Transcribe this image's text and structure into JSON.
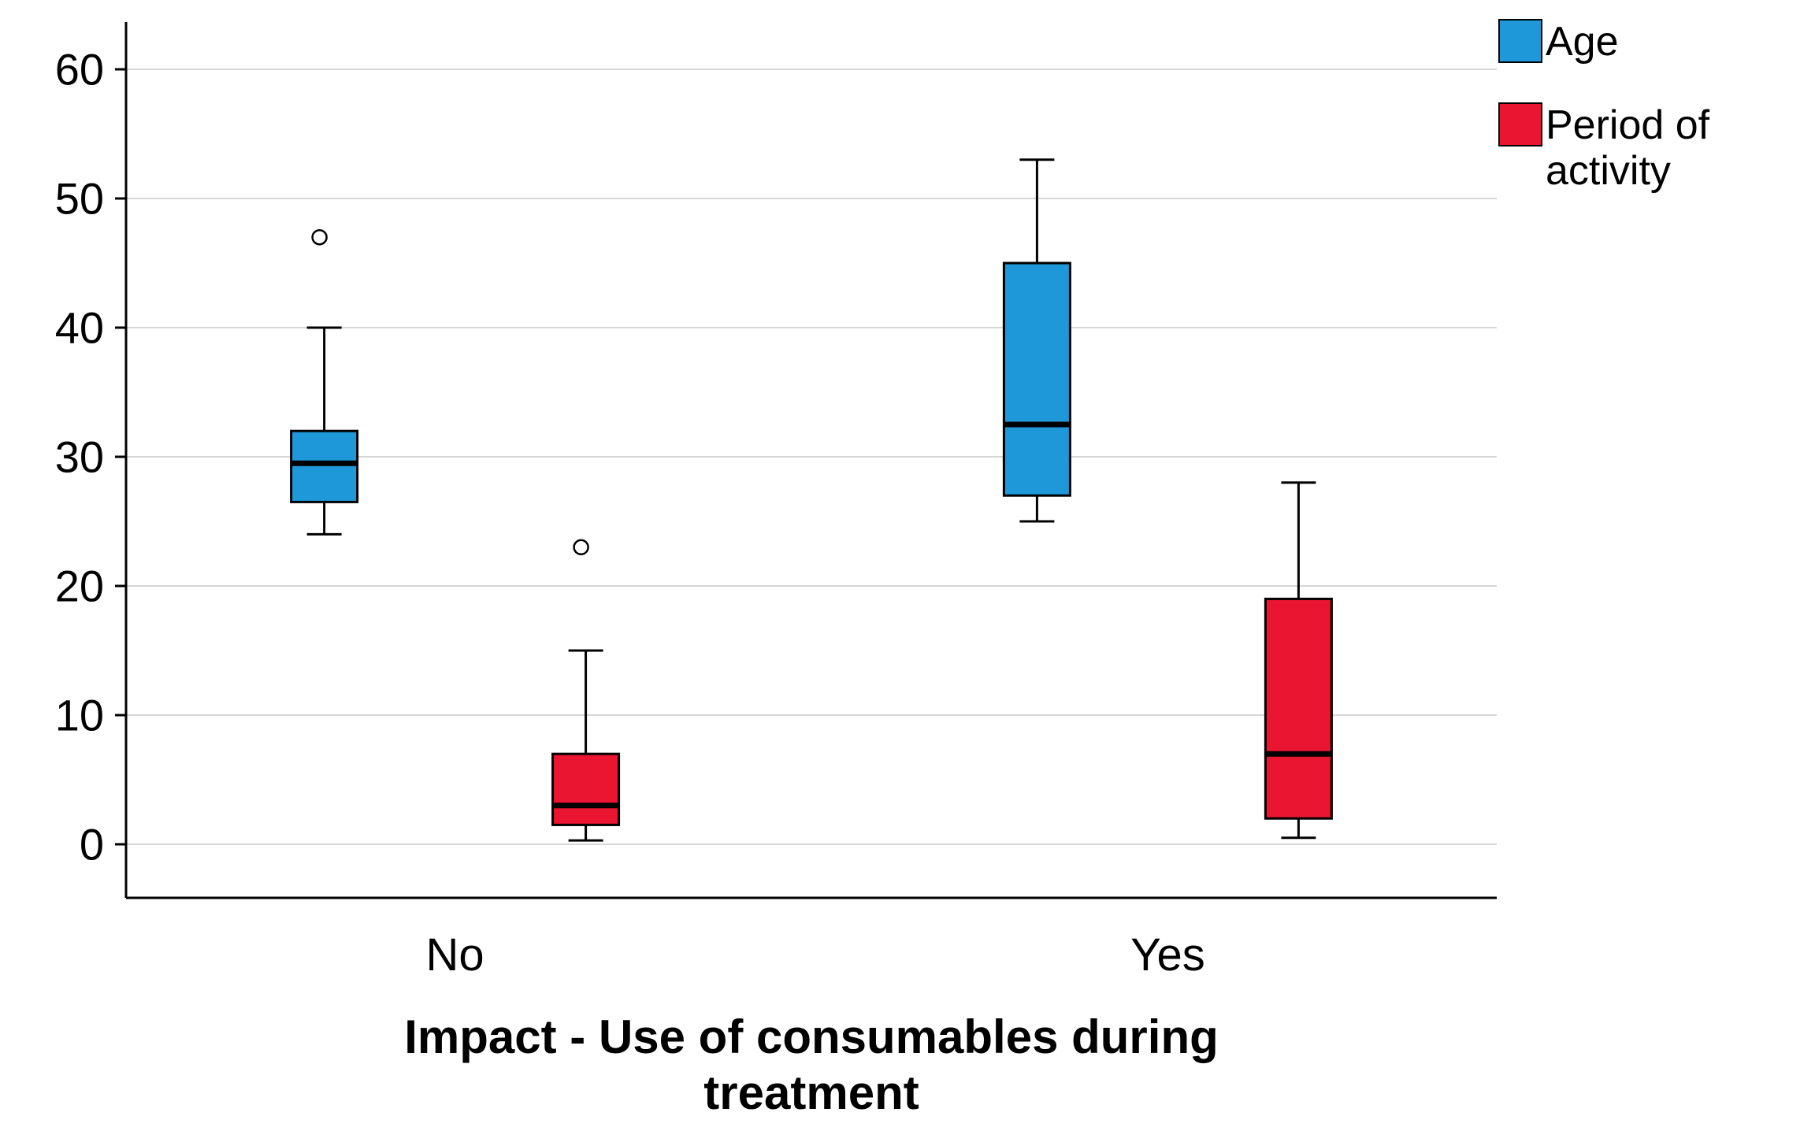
{
  "figure": {
    "background": "#ffffff"
  },
  "chart_data": {
    "type": "boxplot",
    "title": "",
    "xlabel": "Impact - Use of consumables during treatment",
    "ylabel": "",
    "ylim": [
      0,
      60
    ],
    "yticks": [
      0,
      10,
      20,
      30,
      40,
      50,
      60
    ],
    "grid": "horizontal",
    "categories": [
      "No",
      "Yes"
    ],
    "series": [
      {
        "name": "Age",
        "color": "#1e98d8",
        "boxes": [
          {
            "category": "No",
            "whisker_low": 24,
            "q1": 26.5,
            "median": 29.5,
            "q3": 32,
            "whisker_high": 40,
            "outliers": [
              47
            ]
          },
          {
            "category": "Yes",
            "whisker_low": 25,
            "q1": 27,
            "median": 32.5,
            "q3": 45,
            "whisker_high": 53,
            "outliers": []
          }
        ]
      },
      {
        "name": "Period of activity",
        "color": "#ea1530",
        "boxes": [
          {
            "category": "No",
            "whisker_low": 0.3,
            "q1": 1.5,
            "median": 3,
            "q3": 7,
            "whisker_high": 15,
            "outliers": [
              23
            ]
          },
          {
            "category": "Yes",
            "whisker_low": 0.5,
            "q1": 2,
            "median": 7,
            "q3": 19,
            "whisker_high": 28,
            "outliers": []
          }
        ]
      }
    ],
    "legend": {
      "position": "top-right",
      "entries": [
        {
          "label": "Age",
          "color": "#1e98d8"
        },
        {
          "label": "Period of activity",
          "color": "#ea1530"
        }
      ]
    }
  }
}
